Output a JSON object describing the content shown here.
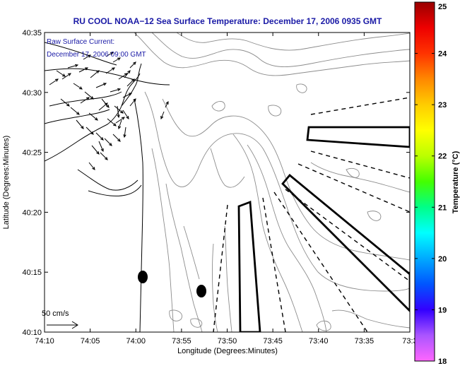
{
  "title": "RU COOL  NOAA−12  Sea Surface Temperature:  December 17, 2006 0935 GMT",
  "current_label_1": "Raw Surface Current:",
  "current_label_2": "December 17, 2006 09:00 GMT",
  "scale_label": "50 cm/s",
  "xlabel": "Longitude (Degrees:Minutes)",
  "ylabel": "Latitude (Degrees:Minutes)",
  "colorbar_label": "Temperature (°C)",
  "x_ticks": [
    "74:10",
    "74:05",
    "74:00",
    "73:55",
    "73:50",
    "73:45",
    "73:40",
    "73:35",
    "73:3"
  ],
  "y_ticks": [
    "40:35",
    "40:30",
    "40:25",
    "40:20",
    "40:15",
    "40:10"
  ],
  "colorbar_ticks": [
    "25",
    "24",
    "23",
    "22",
    "21",
    "20",
    "19",
    "18"
  ],
  "chart_data": {
    "type": "map",
    "xlim": [
      "74:10",
      "73:30"
    ],
    "ylim": [
      "40:10",
      "40:35"
    ],
    "colorbar_range": [
      18,
      25
    ],
    "colorbar_colors": [
      "#ff66ff",
      "#aa55ff",
      "#3300ff",
      "#0055ff",
      "#00aaff",
      "#00ffff",
      "#00ff88",
      "#44ff00",
      "#bbff00",
      "#ffff00",
      "#ffcc00",
      "#ff8800",
      "#ff3300",
      "#ee0000",
      "#990000"
    ],
    "colors": {
      "title": "#1a1aa6",
      "contour": "#8c8c8c",
      "coast": "#000000"
    }
  }
}
